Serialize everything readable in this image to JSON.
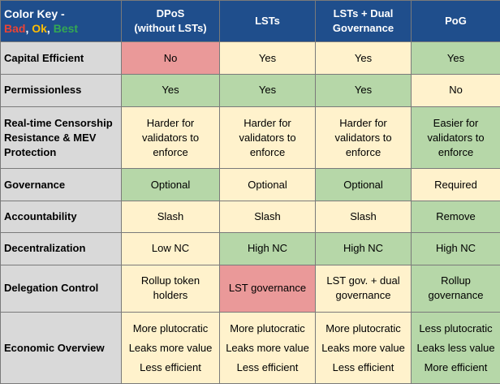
{
  "colors": {
    "bad": "#ea9999",
    "ok": "#fff2cc",
    "best": "#b6d7a8",
    "header": "#1f4e8c",
    "row_header": "#d9d9d9"
  },
  "header": {
    "key_title": "Color Key -",
    "key_bad": "Bad",
    "key_sep1": ", ",
    "key_ok": "Ok",
    "key_sep2": ", ",
    "key_best": "Best",
    "col_dpos_line1": "DPoS",
    "col_dpos_line2": "(without LSTs)",
    "col_lsts": "LSTs",
    "col_lsts_dual_line1": "LSTs + Dual",
    "col_lsts_dual_line2": "Governance",
    "col_pog": "PoG"
  },
  "rows": {
    "capital": {
      "label": "Capital Efficient",
      "dpos": "No",
      "lsts": "Yes",
      "dual": "Yes",
      "pog": "Yes"
    },
    "permissionless": {
      "label": "Permissionless",
      "dpos": "Yes",
      "lsts": "Yes",
      "dual": "Yes",
      "pog": "No"
    },
    "censorship": {
      "label_line1": "Real-time Censorship",
      "label_line2": "Resistance & MEV",
      "label_line3": "Protection",
      "dpos": [
        "Harder for",
        "validators to",
        "enforce"
      ],
      "lsts": [
        "Harder for",
        "validators to",
        "enforce"
      ],
      "dual": [
        "Harder for",
        "validators to",
        "enforce"
      ],
      "pog": [
        "Easier for",
        "validators to",
        "enforce"
      ]
    },
    "governance": {
      "label": "Governance",
      "dpos": "Optional",
      "lsts": "Optional",
      "dual": "Optional",
      "pog": "Required"
    },
    "accountability": {
      "label": "Accountability",
      "dpos": "Slash",
      "lsts": "Slash",
      "dual": "Slash",
      "pog": "Remove"
    },
    "decentralization": {
      "label": "Decentralization",
      "dpos": "Low NC",
      "lsts": "High NC",
      "dual": "High NC",
      "pog": "High NC"
    },
    "delegation": {
      "label": "Delegation Control",
      "dpos": [
        "Rollup token",
        "holders"
      ],
      "lsts": [
        "LST governance"
      ],
      "dual": [
        "LST gov. + dual",
        "governance"
      ],
      "pog": [
        "Rollup",
        "governance"
      ]
    },
    "economic": {
      "label": "Economic Overview",
      "dpos": [
        "More plutocratic",
        "Leaks more value",
        "Less efficient"
      ],
      "lsts": [
        "More plutocratic",
        "Leaks more value",
        "Less efficient"
      ],
      "dual": [
        "More plutocratic",
        "Leaks more value",
        "Less efficient"
      ],
      "pog": [
        "Less plutocratic",
        "Leaks less value",
        "More efficient"
      ]
    }
  }
}
